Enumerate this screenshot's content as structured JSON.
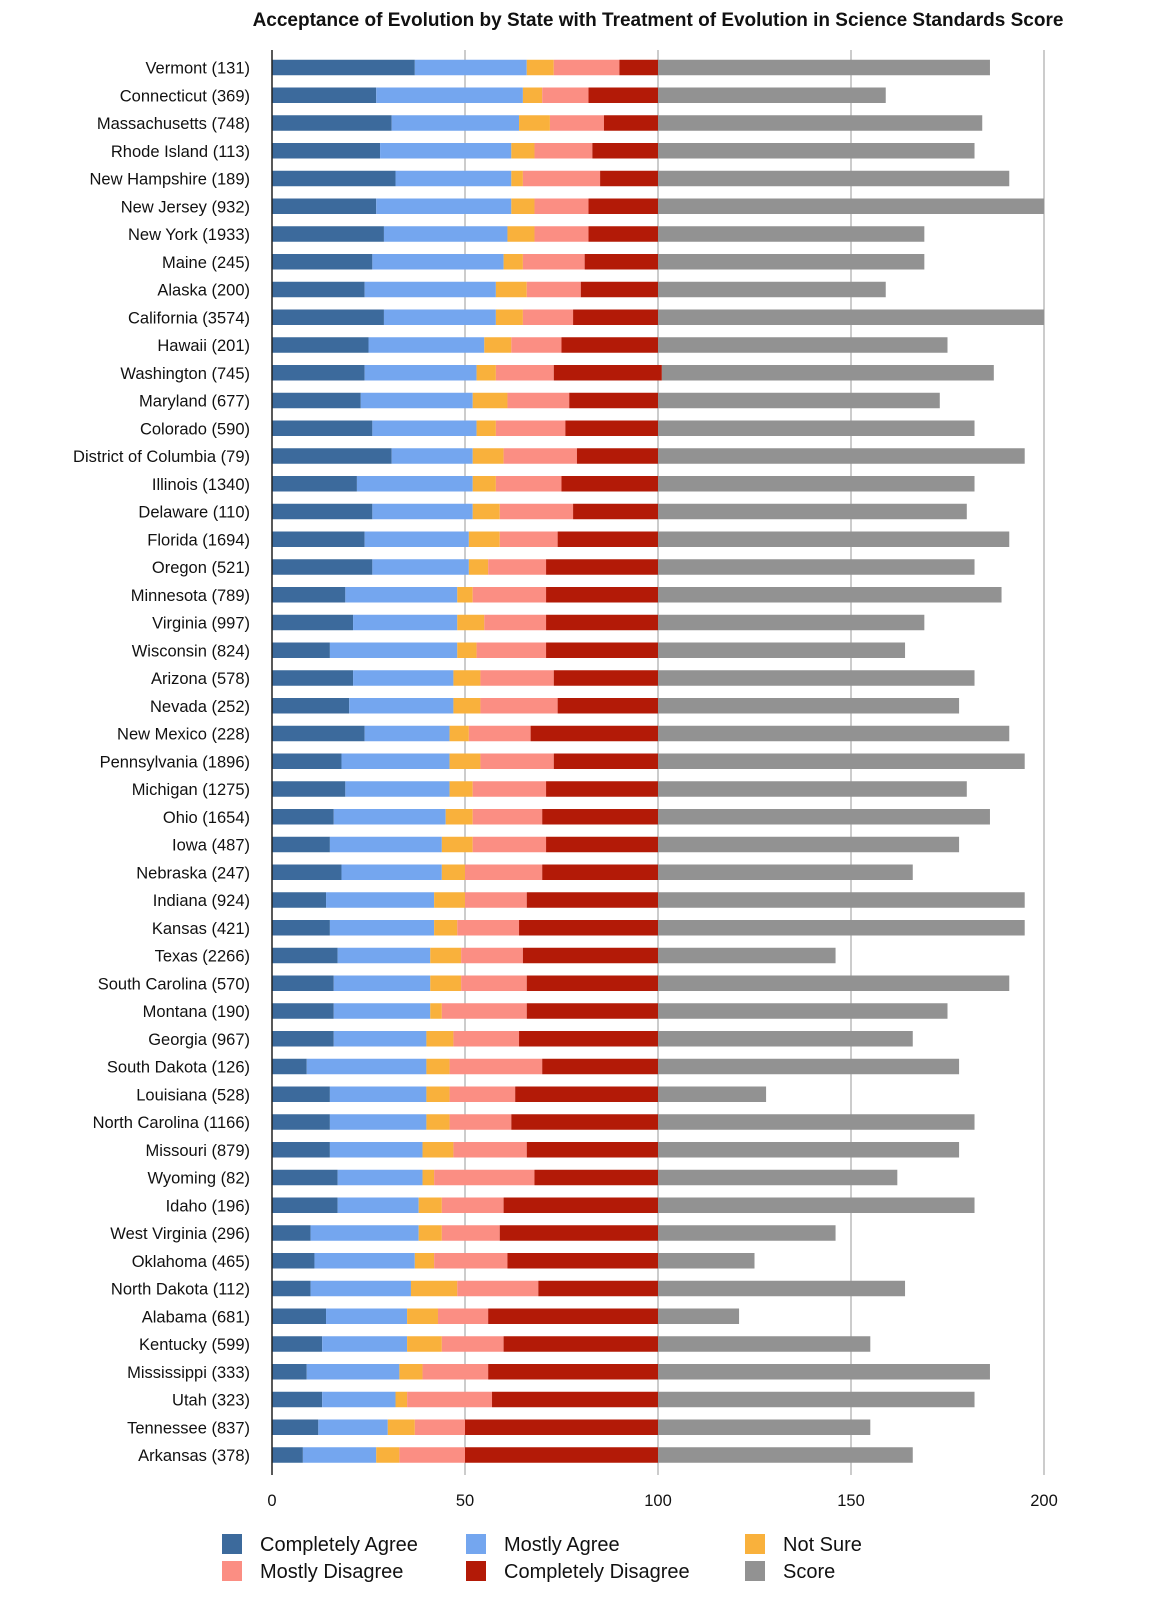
{
  "chart_data": {
    "type": "bar",
    "orientation": "horizontal",
    "stacked": true,
    "title": "Acceptance of Evolution by State with Treatment of Evolution in Science Standards Score",
    "xlabel": "",
    "ylabel": "",
    "xlim": [
      0,
      200
    ],
    "xticks": [
      "0",
      "50",
      "100",
      "150",
      "200"
    ],
    "grid": true,
    "legend_position": "bottom",
    "categories": [
      "Vermont (131)",
      "Connecticut (369)",
      "Massachusetts (748)",
      "Rhode Island (113)",
      "New Hampshire (189)",
      "New Jersey (932)",
      "New York (1933)",
      "Maine (245)",
      "Alaska (200)",
      "California (3574)",
      "Hawaii (201)",
      "Washington (745)",
      "Maryland (677)",
      "Colorado (590)",
      "District of Columbia (79)",
      "Illinois (1340)",
      "Delaware (110)",
      "Florida (1694)",
      "Oregon (521)",
      "Minnesota (789)",
      "Virginia (997)",
      "Wisconsin (824)",
      "Arizona (578)",
      "Nevada (252)",
      "New Mexico (228)",
      "Pennsylvania (1896)",
      "Michigan (1275)",
      "Ohio (1654)",
      "Iowa (487)",
      "Nebraska (247)",
      "Indiana (924)",
      "Kansas (421)",
      "Texas (2266)",
      "South Carolina (570)",
      "Montana (190)",
      "Georgia (967)",
      "South Dakota (126)",
      "Louisiana (528)",
      "North Carolina (1166)",
      "Missouri (879)",
      "Wyoming (82)",
      "Idaho (196)",
      "West Virginia (296)",
      "Oklahoma (465)",
      "North Dakota (112)",
      "Alabama (681)",
      "Kentucky (599)",
      "Mississippi (333)",
      "Utah (323)",
      "Tennessee (837)",
      "Arkansas (378)"
    ],
    "series": [
      {
        "name": "Completely Agree",
        "color": "#3c6a9c",
        "values": [
          37,
          27,
          31,
          28,
          32,
          27,
          29,
          26,
          24,
          29,
          25,
          24,
          23,
          26,
          31,
          22,
          26,
          24,
          26,
          19,
          21,
          15,
          21,
          20,
          24,
          18,
          19,
          16,
          15,
          18,
          14,
          15,
          17,
          16,
          16,
          16,
          9,
          15,
          15,
          15,
          17,
          17,
          10,
          11,
          10,
          14,
          13,
          9,
          13,
          12,
          8
        ]
      },
      {
        "name": "Mostly Agree",
        "color": "#74a6ef",
        "values": [
          29,
          38,
          33,
          34,
          30,
          35,
          32,
          34,
          34,
          29,
          30,
          29,
          29,
          27,
          21,
          30,
          26,
          27,
          25,
          29,
          27,
          33,
          26,
          27,
          22,
          28,
          27,
          29,
          29,
          26,
          28,
          27,
          24,
          25,
          25,
          24,
          31,
          25,
          25,
          24,
          22,
          21,
          28,
          26,
          26,
          21,
          22,
          24,
          19,
          18,
          19
        ]
      },
      {
        "name": "Not Sure",
        "color": "#f9b13c",
        "values": [
          7,
          5,
          8,
          6,
          3,
          6,
          7,
          5,
          8,
          7,
          7,
          5,
          9,
          5,
          8,
          6,
          7,
          8,
          5,
          4,
          7,
          5,
          7,
          7,
          5,
          8,
          6,
          7,
          8,
          6,
          8,
          6,
          8,
          8,
          3,
          7,
          6,
          6,
          6,
          8,
          3,
          6,
          6,
          5,
          12,
          8,
          9,
          6,
          3,
          7,
          6
        ]
      },
      {
        "name": "Mostly Disagree",
        "color": "#fb8e83",
        "values": [
          17,
          12,
          14,
          15,
          20,
          14,
          14,
          16,
          14,
          13,
          13,
          15,
          16,
          18,
          19,
          17,
          19,
          15,
          15,
          19,
          16,
          18,
          19,
          20,
          16,
          19,
          19,
          18,
          19,
          20,
          16,
          16,
          16,
          17,
          22,
          17,
          24,
          17,
          16,
          19,
          26,
          16,
          15,
          19,
          21,
          13,
          16,
          17,
          22,
          13,
          17
        ]
      },
      {
        "name": "Completely Disagree",
        "color": "#b31a07",
        "values": [
          10,
          18,
          14,
          17,
          15,
          18,
          18,
          19,
          20,
          22,
          25,
          28,
          23,
          24,
          21,
          25,
          22,
          26,
          29,
          29,
          29,
          29,
          27,
          26,
          33,
          27,
          29,
          30,
          29,
          30,
          34,
          36,
          35,
          34,
          34,
          36,
          30,
          37,
          38,
          34,
          32,
          40,
          41,
          39,
          31,
          44,
          40,
          44,
          43,
          50,
          50
        ]
      },
      {
        "name": "Score",
        "color": "#929292",
        "values": [
          86,
          59,
          84,
          82,
          91,
          100,
          69,
          69,
          59,
          100,
          75,
          86,
          73,
          82,
          95,
          82,
          80,
          91,
          82,
          89,
          69,
          64,
          82,
          78,
          91,
          95,
          80,
          86,
          78,
          66,
          95,
          95,
          46,
          91,
          75,
          66,
          78,
          28,
          82,
          78,
          62,
          82,
          46,
          25,
          64,
          21,
          55,
          86,
          82,
          55,
          66
        ]
      }
    ]
  }
}
